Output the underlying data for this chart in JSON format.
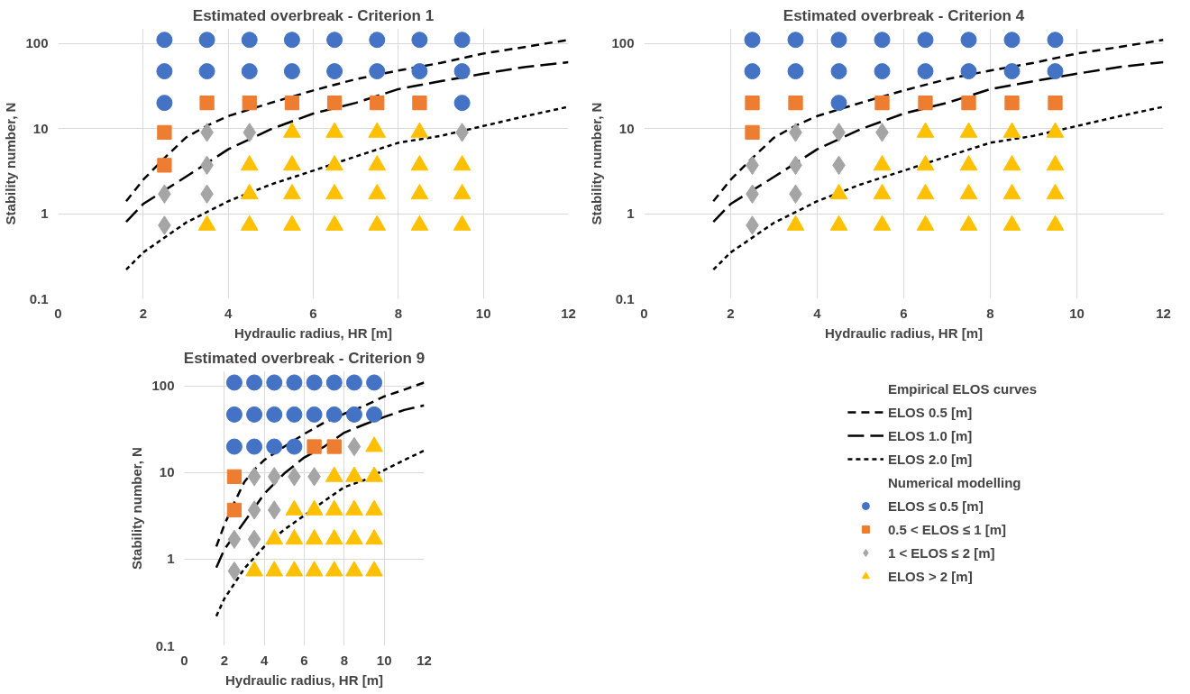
{
  "chart_data": [
    {
      "type": "scatter",
      "title": "Estimated overbreak - Criterion 1",
      "xlabel": "Hydraulic radius, HR [m]",
      "ylabel": "Stability number, N",
      "log": "y",
      "grid": true,
      "legend": false,
      "xlim": [
        0,
        12
      ],
      "xticks": [
        0,
        2,
        4,
        6,
        8,
        10,
        12
      ],
      "ylim": [
        0.1,
        150
      ],
      "yticks": [
        0.1,
        1,
        10,
        100
      ],
      "series": [
        {
          "type": "line",
          "line_style": "dashed",
          "color": "#000000",
          "x": [
            1.6,
            2,
            2.5,
            3,
            3.5,
            4,
            5,
            6,
            7,
            8,
            9,
            10,
            11,
            12
          ],
          "values": [
            1.4,
            2.5,
            4.5,
            7.8,
            10.8,
            14,
            20,
            28,
            38,
            48,
            59,
            76,
            91,
            110
          ]
        },
        {
          "type": "line",
          "line_style": "longdash",
          "color": "#000000",
          "x": [
            1.6,
            2,
            3,
            4,
            5,
            6,
            7,
            8,
            9,
            10,
            11,
            12
          ],
          "values": [
            0.8,
            1.3,
            2.7,
            5.7,
            9.8,
            15,
            20,
            29,
            36,
            44,
            53,
            60
          ]
        },
        {
          "type": "line",
          "line_style": "dotted",
          "color": "#000000",
          "x": [
            1.6,
            2,
            3,
            4,
            5,
            6,
            7,
            8,
            9,
            10,
            11,
            12
          ],
          "values": [
            0.22,
            0.35,
            0.78,
            1.4,
            2.2,
            3.2,
            4.7,
            6.8,
            8.2,
            10.7,
            14,
            18
          ]
        },
        {
          "marker": "circle",
          "color": "#4472c4",
          "x": [
            2.5,
            3.5,
            4.5,
            5.5,
            6.5,
            7.5,
            8.5,
            9.5,
            2.5,
            3.5,
            4.5,
            5.5,
            6.5,
            7.5,
            8.5,
            9.5,
            2.5,
            9.5
          ],
          "values": [
            110,
            110,
            110,
            110,
            110,
            110,
            110,
            110,
            47,
            47,
            47,
            47,
            47,
            47,
            47,
            47,
            20,
            20
          ]
        },
        {
          "marker": "square",
          "color": "#ed7d31",
          "x": [
            3.5,
            4.5,
            5.5,
            6.5,
            7.5,
            8.5,
            2.5,
            2.5
          ],
          "values": [
            20,
            20,
            20,
            20,
            20,
            20,
            9,
            3.7
          ]
        },
        {
          "marker": "diamond",
          "color": "#a5a5a5",
          "x": [
            3.5,
            4.5,
            9.5,
            3.5,
            2.5,
            3.5,
            2.5
          ],
          "values": [
            9,
            9,
            9,
            3.7,
            1.7,
            1.7,
            0.73
          ]
        },
        {
          "marker": "triangle",
          "color": "#ffc000",
          "x": [
            5.5,
            6.5,
            7.5,
            8.5,
            4.5,
            5.5,
            6.5,
            7.5,
            8.5,
            9.5,
            4.5,
            5.5,
            6.5,
            7.5,
            8.5,
            9.5,
            3.5,
            4.5,
            5.5,
            6.5,
            7.5,
            8.5,
            9.5
          ],
          "values": [
            9,
            9,
            9,
            9,
            3.7,
            3.7,
            3.7,
            3.7,
            3.7,
            3.7,
            1.7,
            1.7,
            1.7,
            1.7,
            1.7,
            1.7,
            0.73,
            0.73,
            0.73,
            0.73,
            0.73,
            0.73,
            0.73
          ]
        }
      ]
    },
    {
      "type": "scatter",
      "title": "Estimated overbreak - Criterion 4",
      "xlabel": "Hydraulic radius, HR [m]",
      "ylabel": "Stability number, N",
      "log": "y",
      "grid": true,
      "legend": false,
      "xlim": [
        0,
        12
      ],
      "xticks": [
        0,
        2,
        4,
        6,
        8,
        10,
        12
      ],
      "ylim": [
        0.1,
        150
      ],
      "yticks": [
        0.1,
        1,
        10,
        100
      ],
      "series": [
        {
          "type": "line",
          "line_style": "dashed",
          "color": "#000000",
          "x": [
            1.6,
            2,
            2.5,
            3,
            3.5,
            4,
            5,
            6,
            7,
            8,
            9,
            10,
            11,
            12
          ],
          "values": [
            1.4,
            2.5,
            4.5,
            7.8,
            10.8,
            14,
            20,
            28,
            38,
            48,
            59,
            76,
            91,
            110
          ]
        },
        {
          "type": "line",
          "line_style": "longdash",
          "color": "#000000",
          "x": [
            1.6,
            2,
            3,
            4,
            5,
            6,
            7,
            8,
            9,
            10,
            11,
            12
          ],
          "values": [
            0.8,
            1.3,
            2.7,
            5.7,
            9.8,
            15,
            20,
            29,
            36,
            44,
            53,
            60
          ]
        },
        {
          "type": "line",
          "line_style": "dotted",
          "color": "#000000",
          "x": [
            1.6,
            2,
            3,
            4,
            5,
            6,
            7,
            8,
            9,
            10,
            11,
            12
          ],
          "values": [
            0.22,
            0.35,
            0.78,
            1.4,
            2.2,
            3.2,
            4.7,
            6.8,
            8.2,
            10.7,
            14,
            18
          ]
        },
        {
          "marker": "circle",
          "color": "#4472c4",
          "x": [
            2.5,
            3.5,
            4.5,
            5.5,
            6.5,
            7.5,
            8.5,
            9.5,
            2.5,
            3.5,
            4.5,
            5.5,
            6.5,
            7.5,
            8.5,
            9.5,
            4.5
          ],
          "values": [
            110,
            110,
            110,
            110,
            110,
            110,
            110,
            110,
            47,
            47,
            47,
            47,
            47,
            47,
            47,
            47,
            20
          ]
        },
        {
          "marker": "square",
          "color": "#ed7d31",
          "x": [
            2.5,
            3.5,
            5.5,
            6.5,
            7.5,
            8.5,
            9.5,
            2.5
          ],
          "values": [
            20,
            20,
            20,
            20,
            20,
            20,
            20,
            9
          ]
        },
        {
          "marker": "diamond",
          "color": "#a5a5a5",
          "x": [
            3.5,
            4.5,
            5.5,
            2.5,
            3.5,
            4.5,
            2.5,
            3.5,
            2.5
          ],
          "values": [
            9,
            9,
            9,
            3.7,
            3.7,
            3.7,
            1.7,
            1.7,
            0.73
          ]
        },
        {
          "marker": "triangle",
          "color": "#ffc000",
          "x": [
            6.5,
            7.5,
            8.5,
            9.5,
            5.5,
            6.5,
            7.5,
            8.5,
            9.5,
            4.5,
            5.5,
            6.5,
            7.5,
            8.5,
            9.5,
            3.5,
            4.5,
            5.5,
            6.5,
            7.5,
            8.5,
            9.5
          ],
          "values": [
            9,
            9,
            9,
            9,
            3.7,
            3.7,
            3.7,
            3.7,
            3.7,
            1.7,
            1.7,
            1.7,
            1.7,
            1.7,
            1.7,
            0.73,
            0.73,
            0.73,
            0.73,
            0.73,
            0.73,
            0.73
          ]
        }
      ]
    },
    {
      "type": "scatter",
      "title": "Estimated overbreak - Criterion 9",
      "xlabel": "Hydraulic radius, HR [m]",
      "ylabel": "Stability number, N",
      "log": "y",
      "grid": true,
      "legend": "right",
      "annotations": [
        "Empirical ELOS curves",
        "Numerical modelling"
      ],
      "xlim": [
        0,
        12
      ],
      "xticks": [
        0,
        2,
        4,
        6,
        8,
        10,
        12
      ],
      "ylim": [
        0.1,
        150
      ],
      "yticks": [
        0.1,
        1,
        10,
        100
      ],
      "series": [
        {
          "type": "line",
          "name": "ELOS 0.5 [m]",
          "line_style": "dashed",
          "color": "#000000",
          "x": [
            1.6,
            2,
            2.5,
            3,
            3.5,
            4,
            5,
            6,
            7,
            8,
            9,
            10,
            11,
            12
          ],
          "values": [
            1.4,
            2.5,
            4.5,
            7.8,
            10.8,
            14,
            20,
            28,
            38,
            48,
            59,
            76,
            91,
            110
          ]
        },
        {
          "type": "line",
          "name": "ELOS 1.0 [m]",
          "line_style": "longdash",
          "color": "#000000",
          "x": [
            1.6,
            2,
            3,
            4,
            5,
            6,
            7,
            8,
            9,
            10,
            11,
            12
          ],
          "values": [
            0.8,
            1.3,
            2.7,
            5.7,
            9.8,
            15,
            20,
            29,
            36,
            44,
            53,
            60
          ]
        },
        {
          "type": "line",
          "name": "ELOS 2.0 [m]",
          "line_style": "dotted",
          "color": "#000000",
          "x": [
            1.6,
            2,
            3,
            4,
            5,
            6,
            7,
            8,
            9,
            10,
            11,
            12
          ],
          "values": [
            0.22,
            0.35,
            0.78,
            1.4,
            2.2,
            3.2,
            4.7,
            6.8,
            8.2,
            10.7,
            14,
            18
          ]
        },
        {
          "name": "ELOS ≤ 0.5 [m]",
          "marker": "circle",
          "color": "#4472c4",
          "x": [
            2.5,
            3.5,
            4.5,
            5.5,
            6.5,
            7.5,
            8.5,
            9.5,
            2.5,
            3.5,
            4.5,
            5.5,
            6.5,
            7.5,
            8.5,
            9.5,
            2.5,
            3.5,
            4.5,
            5.5
          ],
          "values": [
            110,
            110,
            110,
            110,
            110,
            110,
            110,
            110,
            47,
            47,
            47,
            47,
            47,
            47,
            47,
            47,
            20,
            20,
            20,
            20
          ]
        },
        {
          "name": "0.5 < ELOS ≤ 1 [m]",
          "marker": "square",
          "color": "#ed7d31",
          "x": [
            6.5,
            7.5,
            2.5,
            2.5
          ],
          "values": [
            20,
            20,
            9,
            3.7
          ]
        },
        {
          "name": "1 < ELOS ≤ 2 [m]",
          "marker": "diamond",
          "color": "#a5a5a5",
          "x": [
            8.5,
            3.5,
            4.5,
            5.5,
            6.5,
            3.5,
            4.5,
            2.5,
            3.5,
            2.5
          ],
          "values": [
            20,
            9,
            9,
            9,
            9,
            3.7,
            3.7,
            1.7,
            1.7,
            0.73
          ]
        },
        {
          "name": "ELOS > 2 [m]",
          "marker": "triangle",
          "color": "#ffc000",
          "x": [
            9.5,
            7.5,
            8.5,
            9.5,
            5.5,
            6.5,
            7.5,
            8.5,
            9.5,
            4.5,
            5.5,
            6.5,
            7.5,
            8.5,
            9.5,
            3.5,
            4.5,
            5.5,
            6.5,
            7.5,
            8.5,
            9.5
          ],
          "values": [
            20,
            9,
            9,
            9,
            3.7,
            3.7,
            3.7,
            3.7,
            3.7,
            1.7,
            1.7,
            1.7,
            1.7,
            1.7,
            1.7,
            0.73,
            0.73,
            0.73,
            0.73,
            0.73,
            0.73,
            0.73
          ]
        }
      ]
    }
  ]
}
